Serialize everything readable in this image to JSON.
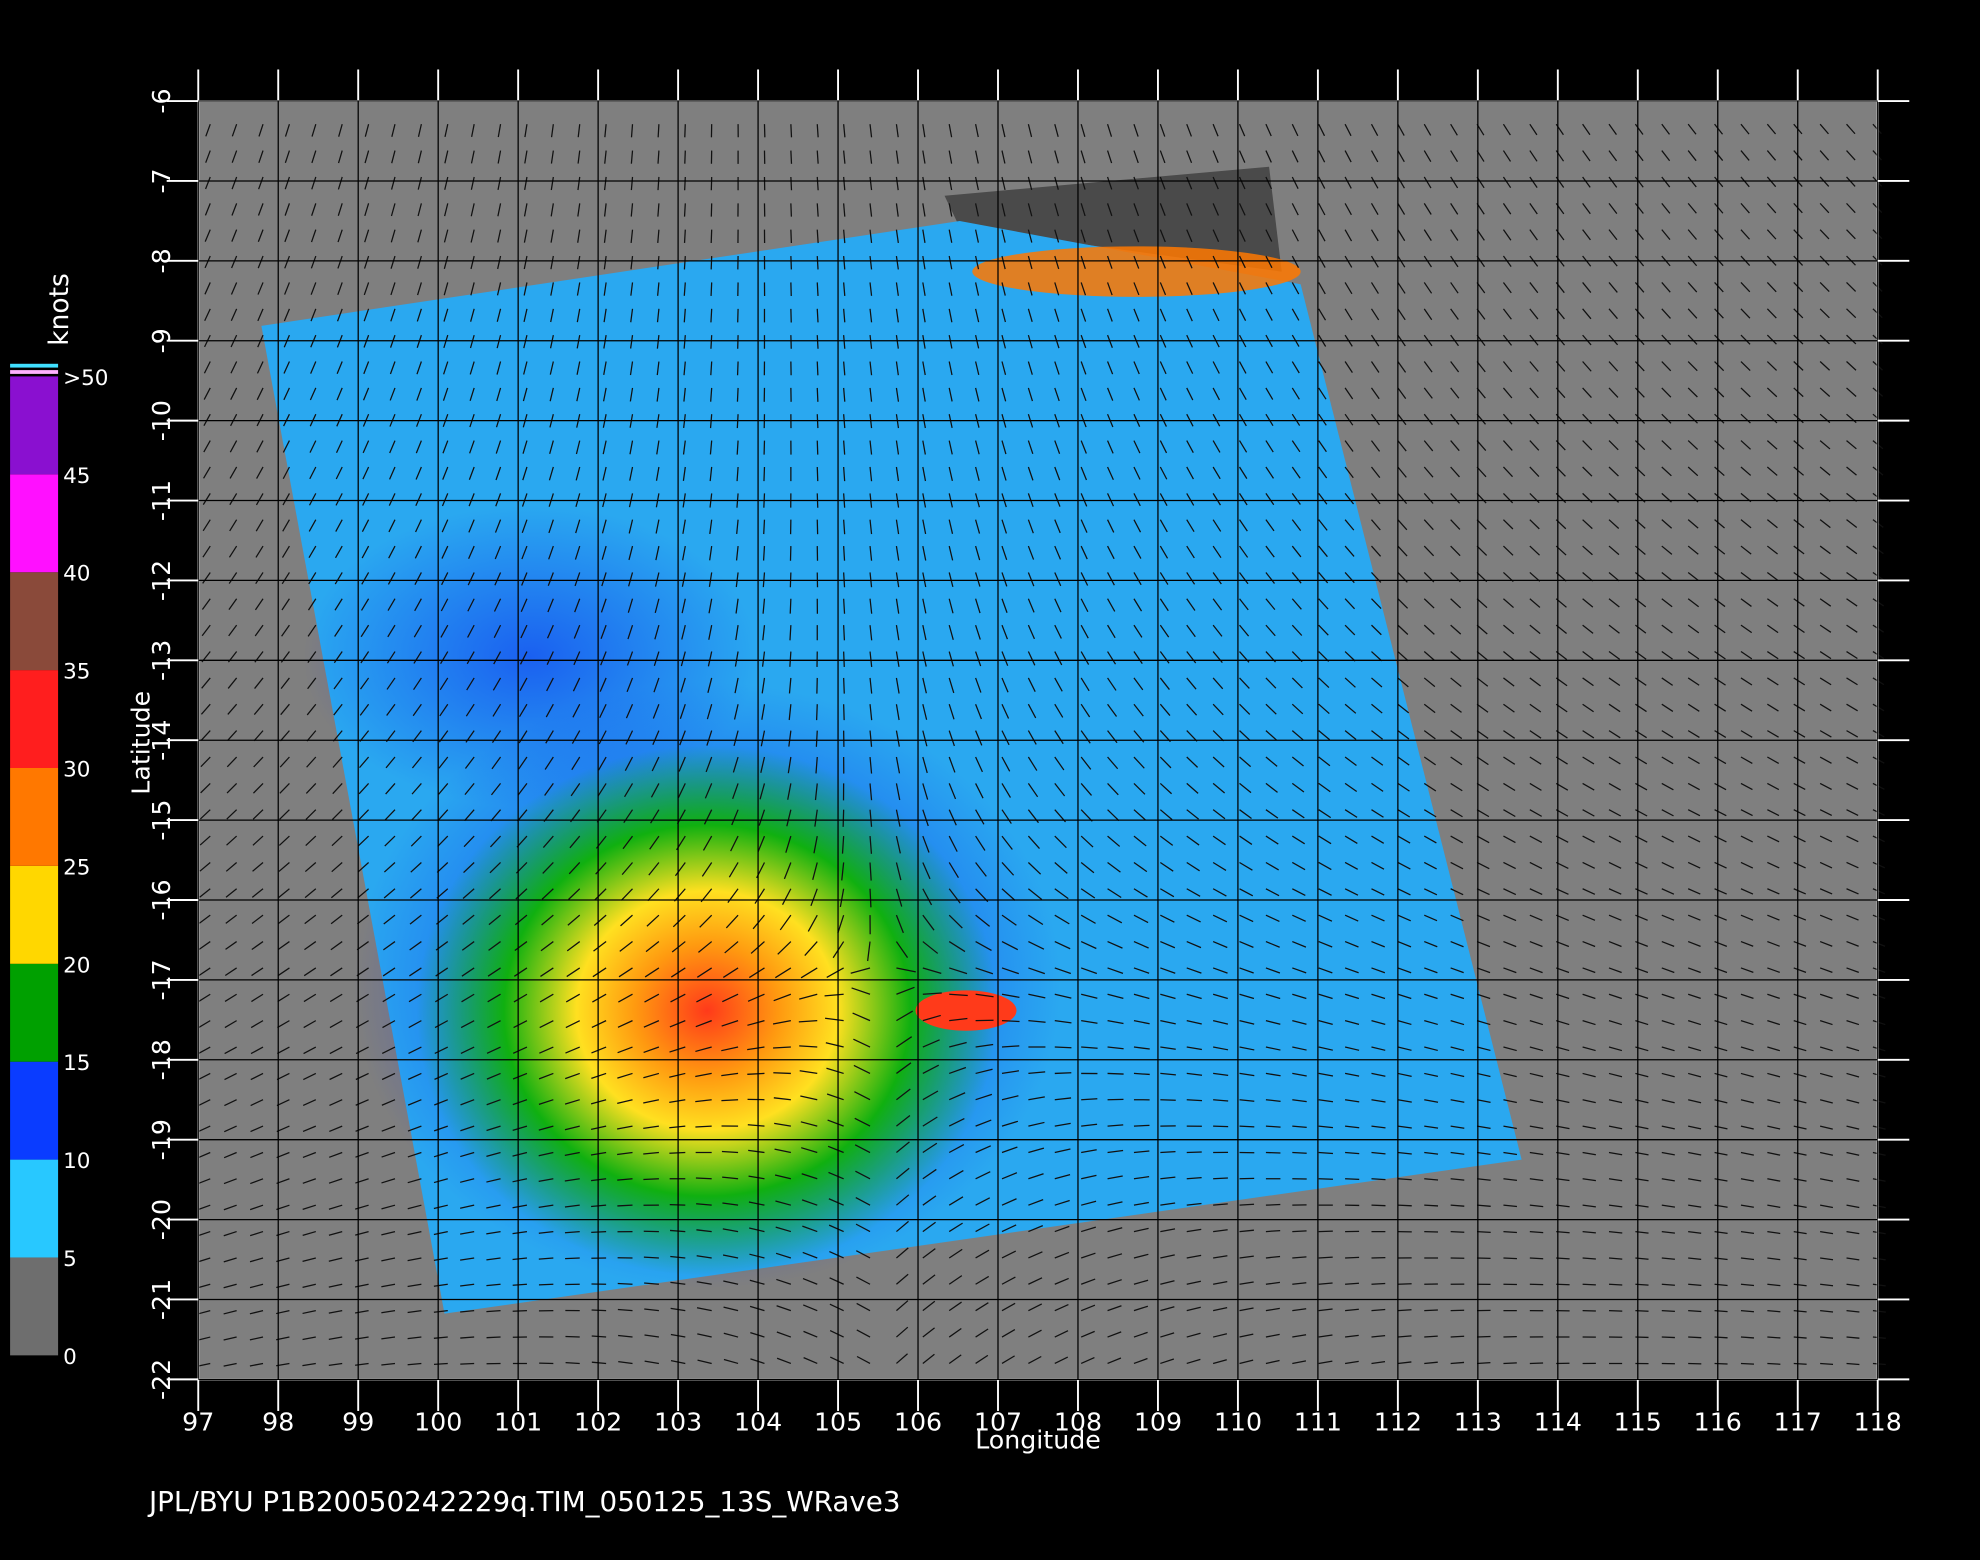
{
  "map": {
    "xlabel": "Longitude",
    "ylabel": "Latitude",
    "xlim": [
      97,
      118
    ],
    "ylim": [
      -22,
      -6
    ],
    "xticks": [
      97,
      98,
      99,
      100,
      101,
      102,
      103,
      104,
      105,
      106,
      107,
      108,
      109,
      110,
      111,
      112,
      113,
      114,
      115,
      116,
      117,
      118
    ],
    "yticks": [
      -6,
      -7,
      -8,
      -9,
      -10,
      -11,
      -12,
      -13,
      -14,
      -15,
      -16,
      -17,
      -18,
      -19,
      -20,
      -21,
      -22
    ]
  },
  "colorbar": {
    "title": "knots",
    "lim": [
      0,
      50
    ],
    "ticks": [
      0,
      5,
      10,
      15,
      20,
      25,
      30,
      35,
      40,
      45,
      {
        "value": 50,
        "label": ">50"
      }
    ],
    "colors": [
      "#6e6e6e",
      "#28c8ff",
      "#0a3cff",
      "#00a000",
      "#ffd700",
      "#ff7800",
      "#ff1e1e",
      "#8a4a3a",
      "#ff10ff",
      "#8a10d0"
    ]
  },
  "footer": "JPL/BYU  P1B20050242229q.TIM_050125_13S_WRave3"
}
